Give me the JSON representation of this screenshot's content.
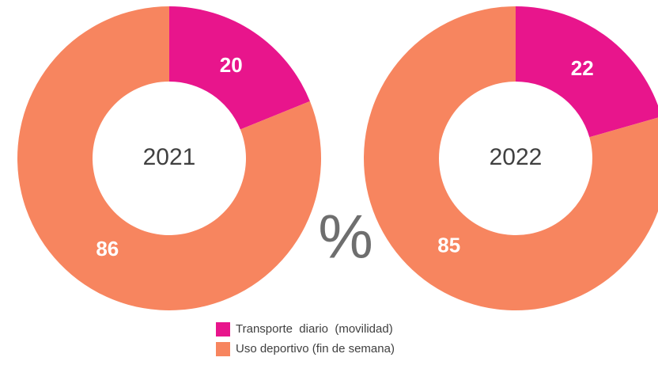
{
  "chart_data": [
    {
      "type": "pie",
      "title": "2021",
      "categories": [
        "Transporte  diario  (movilidad)",
        "Uso deportivo (fin de semana)"
      ],
      "values": [
        20,
        86
      ],
      "colors": [
        "#e8158c",
        "#f7855f"
      ]
    },
    {
      "type": "pie",
      "title": "2022",
      "categories": [
        "Transporte  diario  (movilidad)",
        "Uso deportivo (fin de semana)"
      ],
      "values": [
        22,
        85
      ],
      "colors": [
        "#e8158c",
        "#f7855f"
      ]
    }
  ],
  "unit_label": "%"
}
